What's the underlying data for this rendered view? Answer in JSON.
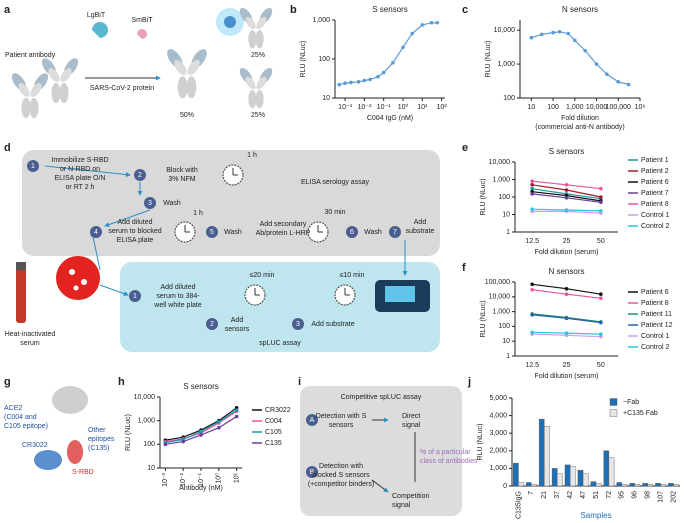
{
  "panel_labels": [
    "a",
    "b",
    "c",
    "d",
    "e",
    "f",
    "g",
    "h",
    "i",
    "j"
  ],
  "diagrams": {
    "a": [
      "Patient antibody",
      "LgBiT",
      "SmBiT",
      "SARS-CoV-2 protein",
      "50%",
      "25%",
      "25%"
    ],
    "d": [
      "1",
      "Immobilize S-RBD",
      "or N-RBD on",
      "ELISA plate O/N",
      "or RT 2 h",
      "2",
      "Block with",
      "3% NFM",
      "1 h",
      "3",
      "Wash",
      "4",
      "Add diluted",
      "serum to blocked",
      "ELISA plate",
      "1 h",
      "5",
      "Wash",
      "Add secondary",
      "Ab/protein L-HRP",
      "30 min",
      "6",
      "Wash",
      "7",
      "Add",
      "substrate",
      "ELISA serology assay",
      "Heat-inactivated",
      "serum",
      "1",
      "Add diluted",
      "serum to 384-",
      "well white plate",
      "2",
      "Add",
      "sensors",
      "≤20 min",
      "3",
      "Add substrate",
      "≤10 min",
      "spLUC assay"
    ],
    "g": [
      "ACE2",
      "(C004 and",
      "C105 epitope)",
      "CR3022",
      "S-RBD",
      "Other",
      "epitopes",
      "(C135)"
    ],
    "i": [
      "Competitive spLUC assay",
      "A",
      "Detection with S",
      "sensors",
      "Direct",
      "signal",
      "B",
      "Detection with",
      "blocked S sensors",
      "(+competitor binders)",
      "Competition",
      "signal",
      "% of a particular",
      "class of antibodies"
    ]
  },
  "chart_data": [
    {
      "type": "line",
      "title": "S sensors",
      "xlabel": "C004 IgG (nM)",
      "ylabel": "RLU (NLuc)",
      "xscale": "log",
      "yscale": "log",
      "xlim": [
        0.0003,
        150
      ],
      "ylim": [
        10,
        1000
      ],
      "xticks": [
        {
          "value": 0.001,
          "label": "10⁻³"
        },
        {
          "value": 0.01,
          "label": "10⁻²"
        },
        {
          "value": 0.1,
          "label": "10⁻¹"
        },
        {
          "value": 1,
          "label": "10⁰"
        },
        {
          "value": 10,
          "label": "10¹"
        },
        {
          "value": 100,
          "label": "10²"
        }
      ],
      "yticks": [
        10,
        100,
        {
          "value": 1000,
          "label": "1,000"
        }
      ],
      "x": [
        0.0005,
        0.001,
        0.002,
        0.005,
        0.01,
        0.02,
        0.05,
        0.1,
        0.3,
        1,
        3,
        10,
        30,
        60
      ],
      "series": [
        {
          "color": "#5b9bd5",
          "values": [
            22,
            24,
            25,
            26,
            28,
            30,
            35,
            45,
            80,
            200,
            450,
            750,
            850,
            850
          ]
        }
      ]
    },
    {
      "type": "line",
      "title": "N sensors",
      "xlabel": "Fold dilution",
      "xlabel_sub": "(commercial anti-N antibody)",
      "ylabel": "RLU (NLuc)",
      "xscale": "log",
      "yscale": "log",
      "xlim": [
        3,
        1000000
      ],
      "ylim": [
        100,
        20000
      ],
      "xticks": [
        10,
        100,
        {
          "value": 1000,
          "label": "1,000"
        },
        {
          "value": 10000,
          "label": "10,000"
        },
        {
          "value": 100000,
          "label": "100,000"
        },
        {
          "value": 1000000,
          "label": "10⁶"
        }
      ],
      "yticks": [
        100,
        {
          "value": 1000,
          "label": "1,000"
        },
        {
          "value": 10000,
          "label": "10,000"
        }
      ],
      "x": [
        10,
        30,
        100,
        200,
        500,
        1000,
        3000,
        10000,
        30000,
        100000,
        300000
      ],
      "series": [
        {
          "color": "#5b9bd5",
          "values": [
            6000,
            7500,
            8500,
            9000,
            8000,
            5000,
            2500,
            1000,
            500,
            300,
            250
          ]
        }
      ]
    },
    {
      "type": "line",
      "title": "S sensors",
      "xlabel": "Fold dilution (serum)",
      "ylabel": "RLU (NLuc)",
      "yscale": "log",
      "legend": "right",
      "categories": [
        "12.5",
        "25",
        "50"
      ],
      "ylim": [
        1,
        10000
      ],
      "yticks": [
        1,
        10,
        100,
        {
          "value": 1000,
          "label": "1,000"
        },
        {
          "value": 10000,
          "label": "10,000"
        }
      ],
      "series": [
        {
          "name": "Patient 1",
          "color": "#1a9a9a",
          "values": [
            300,
            150,
            80
          ]
        },
        {
          "name": "Patient 2",
          "color": "#a01c2c",
          "values": [
            500,
            250,
            100
          ]
        },
        {
          "name": "Patient 6",
          "color": "#111111",
          "values": [
            200,
            120,
            60
          ]
        },
        {
          "name": "Patient 7",
          "color": "#6a3d9a",
          "values": [
            150,
            90,
            50
          ]
        },
        {
          "name": "Patient 8",
          "color": "#e8559a",
          "values": [
            800,
            500,
            300
          ]
        },
        {
          "name": "Control 1",
          "color": "#c9a0e8",
          "values": [
            15,
            15,
            12
          ]
        },
        {
          "name": "Control 2",
          "color": "#2ec4e0",
          "values": [
            20,
            18,
            16
          ]
        }
      ]
    },
    {
      "type": "line",
      "title": "N sensors",
      "xlabel": "Fold dilution (serum)",
      "ylabel": "RLU (NLuc)",
      "yscale": "log",
      "legend": "right",
      "categories": [
        "12.5",
        "25",
        "50"
      ],
      "ylim": [
        1,
        100000
      ],
      "yticks": [
        1,
        10,
        100,
        {
          "value": 1000,
          "label": "1,000"
        },
        {
          "value": 10000,
          "label": "10,000"
        },
        {
          "value": 100000,
          "label": "100,000"
        }
      ],
      "series": [
        {
          "name": "Patient 6",
          "color": "#111111",
          "values": [
            70000,
            35000,
            15000
          ]
        },
        {
          "name": "Patient 8",
          "color": "#e8559a",
          "values": [
            30000,
            15000,
            8000
          ]
        },
        {
          "name": "Patient 11",
          "color": "#1f8f6a",
          "values": [
            700,
            400,
            200
          ]
        },
        {
          "name": "Patient 12",
          "color": "#2b5fb0",
          "values": [
            600,
            350,
            180
          ]
        },
        {
          "name": "Control 1",
          "color": "#c9a0e8",
          "values": [
            30,
            25,
            20
          ]
        },
        {
          "name": "Control 2",
          "color": "#2ec4e0",
          "values": [
            40,
            35,
            30
          ]
        }
      ]
    },
    {
      "type": "line",
      "title": "S sensors",
      "xlabel": "Antibody (nM)",
      "ylabel": "RLU (NLuc)",
      "xscale": "log",
      "yscale": "log",
      "legend": "right",
      "xlim": [
        0.0005,
        20
      ],
      "ylim": [
        10,
        10000
      ],
      "xticks": [
        {
          "value": 0.001,
          "label": "10⁻³"
        },
        {
          "value": 0.01,
          "label": "10⁻²"
        },
        {
          "value": 0.1,
          "label": "10⁻¹"
        },
        {
          "value": 1,
          "label": "10⁰"
        },
        {
          "value": 10,
          "label": "10¹"
        }
      ],
      "yticks": [
        10,
        100,
        {
          "value": 1000,
          "label": "1,000"
        },
        {
          "value": 10000,
          "label": "10,000"
        }
      ],
      "x": [
        0.001,
        0.01,
        0.1,
        1,
        10
      ],
      "series": [
        {
          "name": "CR3022",
          "color": "#111111",
          "values": [
            150,
            200,
            400,
            1000,
            3500
          ]
        },
        {
          "name": "C004",
          "color": "#e8559a",
          "values": [
            130,
            170,
            300,
            800,
            2500
          ]
        },
        {
          "name": "C105",
          "color": "#1a9ab0",
          "values": [
            120,
            160,
            350,
            900,
            2800
          ]
        },
        {
          "name": "C135",
          "color": "#6a3d9a",
          "values": [
            100,
            130,
            250,
            500,
            1500
          ]
        }
      ]
    },
    {
      "type": "bar",
      "xlabel": "Samples",
      "ylabel": "RLU (NLuc)",
      "legend": "upper right",
      "categories": [
        "C135IgG",
        "7",
        "21",
        "37",
        "42",
        "47",
        "51",
        "72",
        "95",
        "96",
        "98",
        "107",
        "202"
      ],
      "ylim": [
        0,
        5000
      ],
      "yticks": [
        0,
        {
          "value": 1000,
          "label": "1,000"
        },
        {
          "value": 2000,
          "label": "2,000"
        },
        {
          "value": 3000,
          "label": "3,000"
        },
        {
          "value": 4000,
          "label": "4,000"
        },
        {
          "value": 5000,
          "label": "5,000"
        }
      ],
      "series": [
        {
          "name": "−Fab",
          "color": "#1f6fb5",
          "values": [
            1300,
            200,
            3800,
            1000,
            1200,
            900,
            250,
            2000,
            200,
            150,
            150,
            150,
            150
          ]
        },
        {
          "name": "+C135 Fab",
          "color": "#e6e6e6",
          "values": [
            200,
            100,
            3400,
            700,
            1100,
            700,
            150,
            1600,
            100,
            100,
            100,
            100,
            100
          ]
        }
      ]
    }
  ]
}
